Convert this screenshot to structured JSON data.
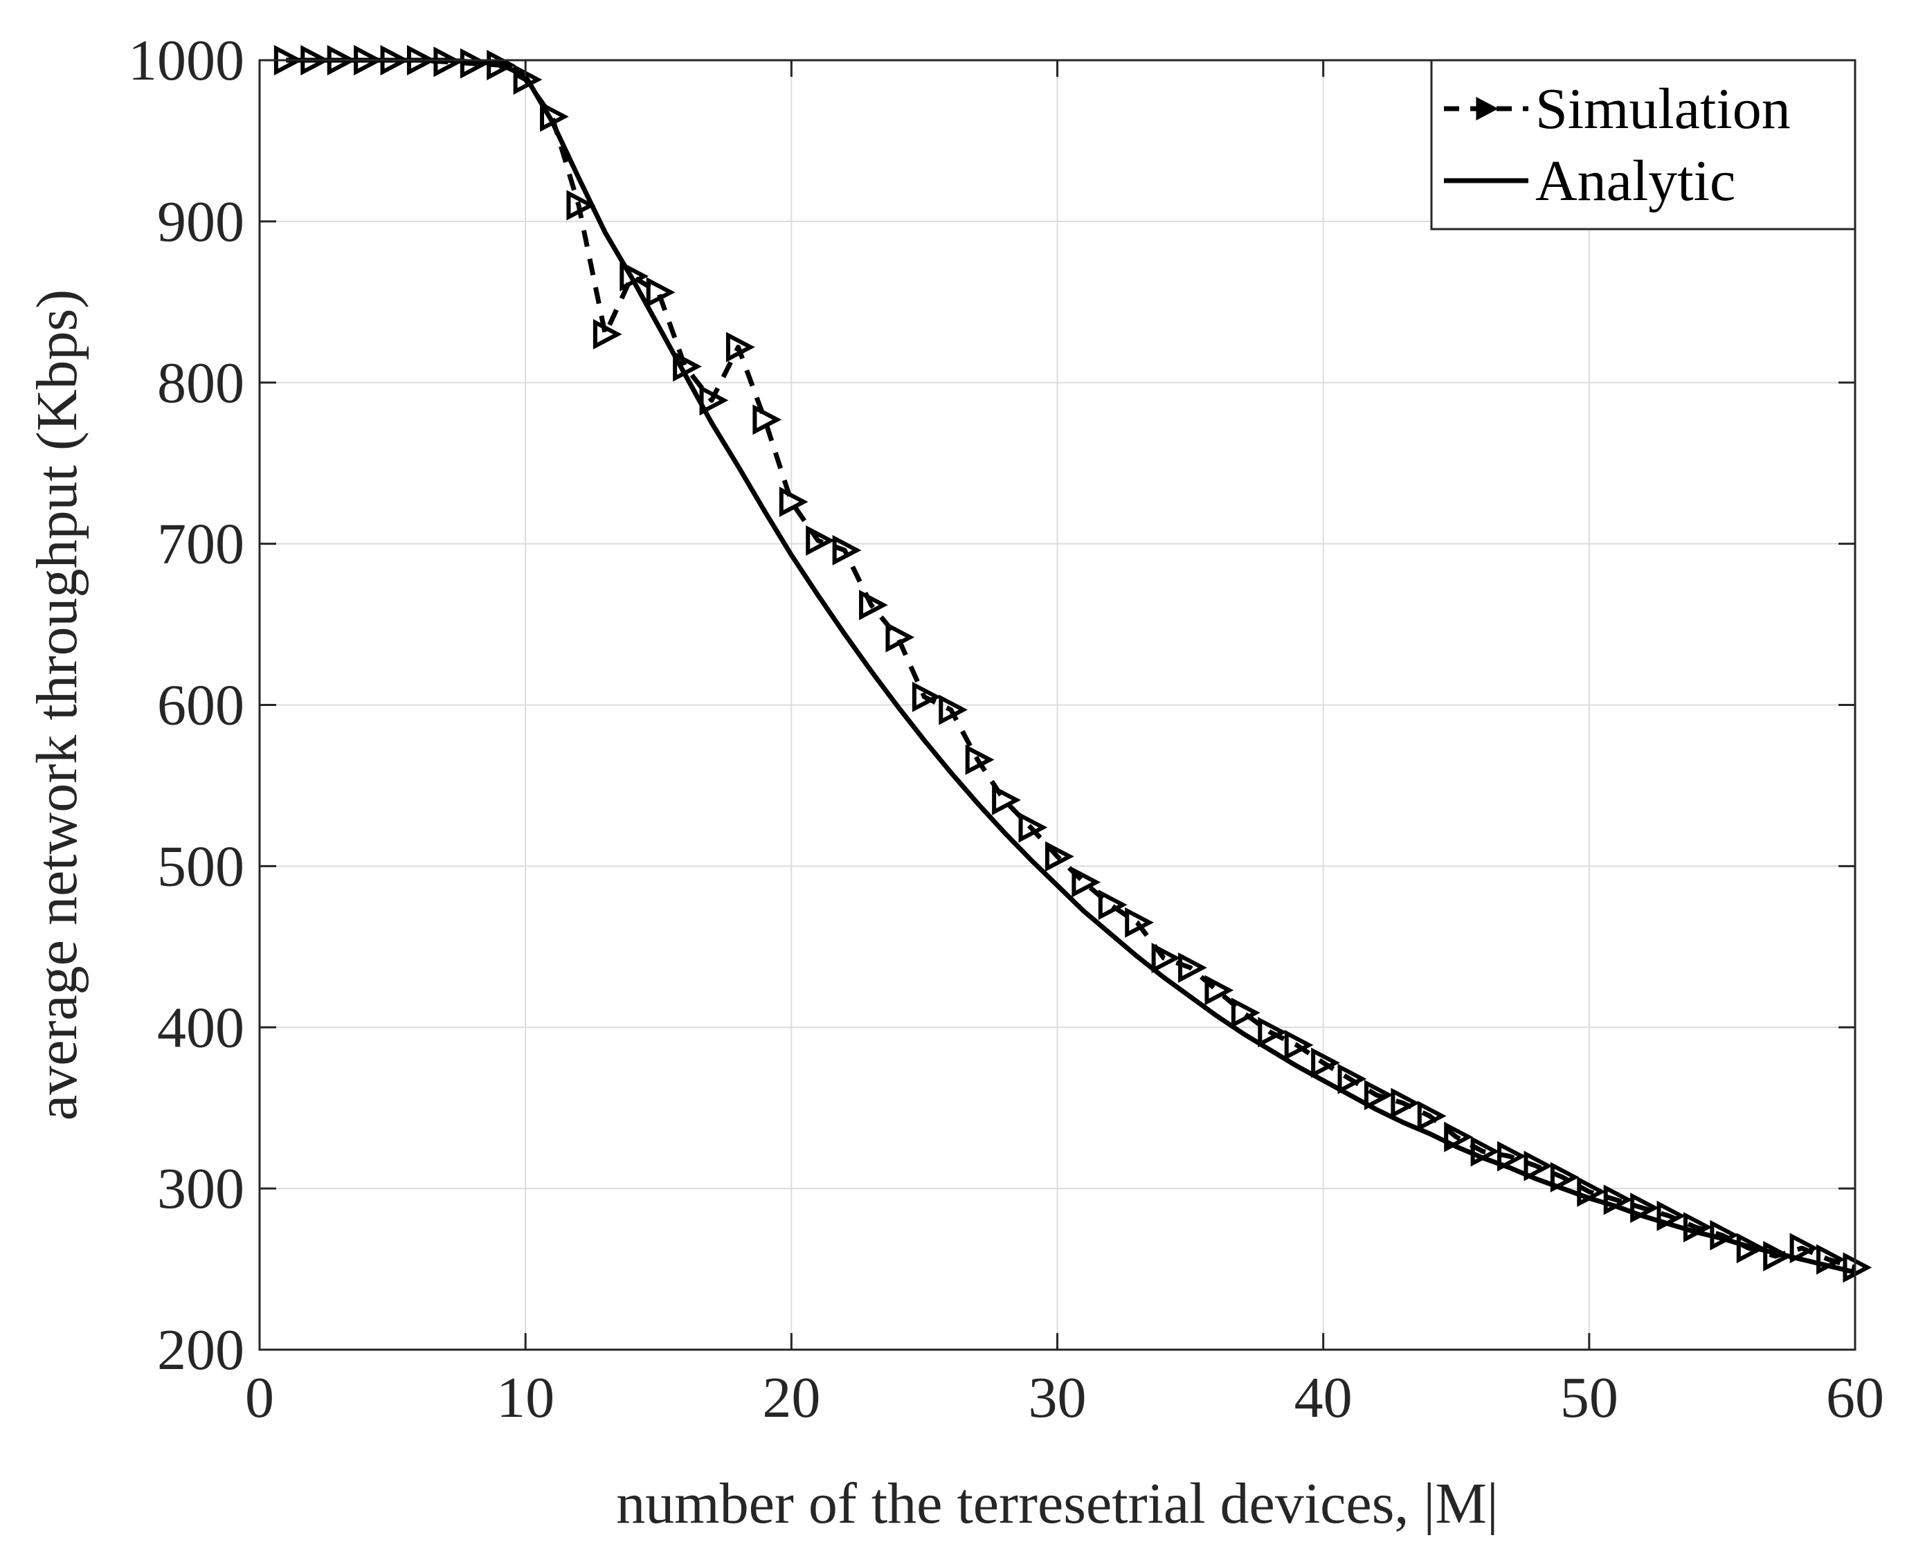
{
  "chart_data": {
    "type": "line",
    "title": "",
    "xlabel": "number of the terresetrial devices, |M|",
    "ylabel": "average network throughput (Kbps)",
    "xlim": [
      0,
      60
    ],
    "ylim": [
      200,
      1000
    ],
    "xticks": [
      0,
      10,
      20,
      30,
      40,
      50,
      60
    ],
    "yticks": [
      200,
      300,
      400,
      500,
      600,
      700,
      800,
      900,
      1000
    ],
    "grid": true,
    "legend_position": "top-right",
    "series": [
      {
        "name": "Simulation",
        "style": "dashed",
        "marker": "triangle-right",
        "color": "#000000",
        "x": [
          1,
          2,
          3,
          4,
          5,
          6,
          7,
          8,
          9,
          10,
          11,
          12,
          13,
          14,
          15,
          16,
          17,
          18,
          19,
          20,
          21,
          22,
          23,
          24,
          25,
          26,
          27,
          28,
          29,
          30,
          31,
          32,
          33,
          34,
          35,
          36,
          37,
          38,
          39,
          40,
          41,
          42,
          43,
          44,
          45,
          46,
          47,
          48,
          49,
          50,
          51,
          52,
          53,
          54,
          55,
          56,
          57,
          58,
          59,
          60
        ],
        "y": [
          1000,
          1000,
          1000,
          1000,
          1000,
          1000,
          999,
          998,
          997,
          988,
          965,
          910,
          830,
          866,
          856,
          810,
          789,
          822,
          777,
          726,
          702,
          696,
          662,
          642,
          605,
          597,
          566,
          541,
          524,
          506,
          490,
          476,
          465,
          443,
          437,
          423,
          409,
          397,
          389,
          378,
          368,
          358,
          353,
          345,
          332,
          323,
          320,
          314,
          307,
          298,
          293,
          288,
          283,
          276,
          271,
          263,
          258,
          263,
          256,
          251
        ]
      },
      {
        "name": "Analytic",
        "style": "solid",
        "marker": "none",
        "color": "#000000",
        "x": [
          1,
          2,
          3,
          4,
          5,
          6,
          7,
          8,
          9,
          10,
          11,
          12,
          13,
          14,
          15,
          16,
          17,
          18,
          19,
          20,
          21,
          22,
          23,
          24,
          25,
          26,
          27,
          28,
          29,
          30,
          31,
          32,
          33,
          34,
          35,
          36,
          37,
          38,
          39,
          40,
          41,
          42,
          43,
          44,
          45,
          46,
          47,
          48,
          49,
          50,
          51,
          52,
          53,
          54,
          55,
          56,
          57,
          58,
          59,
          60
        ],
        "y": [
          1000,
          1000,
          1000,
          1000,
          1000,
          1000,
          1000,
          999,
          998,
          990,
          962,
          927,
          893,
          865,
          835,
          805,
          775,
          748,
          720,
          693,
          668,
          644,
          621,
          599,
          578,
          558,
          539,
          521,
          504,
          488,
          472,
          458,
          444,
          431,
          419,
          407,
          396,
          386,
          376,
          367,
          358,
          349,
          341,
          334,
          326,
          319,
          313,
          306,
          300,
          294,
          289,
          283,
          278,
          273,
          269,
          264,
          260,
          256,
          252,
          248
        ]
      }
    ]
  }
}
